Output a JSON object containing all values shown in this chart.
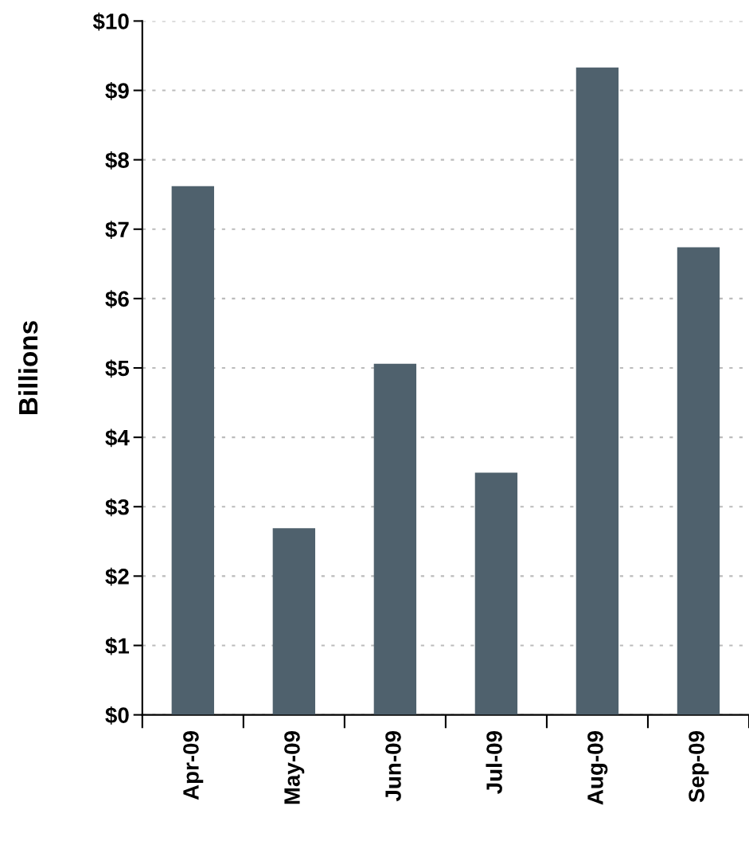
{
  "chart_data": {
    "type": "bar",
    "ylabel": "Billions",
    "categories": [
      "Apr-09",
      "May-09",
      "Jun-09",
      "Jul-09",
      "Aug-09",
      "Sep-09"
    ],
    "values": [
      7.62,
      2.69,
      5.06,
      3.49,
      9.33,
      6.74
    ],
    "color": "#4f616d",
    "ylim": [
      0,
      10
    ],
    "yticks": [
      {
        "value": 0,
        "label": "$0"
      },
      {
        "value": 1,
        "label": "$1"
      },
      {
        "value": 2,
        "label": "$2"
      },
      {
        "value": 3,
        "label": "$3"
      },
      {
        "value": 4,
        "label": "$4"
      },
      {
        "value": 5,
        "label": "$5"
      },
      {
        "value": 6,
        "label": "$6"
      },
      {
        "value": 7,
        "label": "$7"
      },
      {
        "value": 8,
        "label": "$8"
      },
      {
        "value": 9,
        "label": "$9"
      },
      {
        "value": 10,
        "label": "$10"
      }
    ],
    "grid": "y"
  }
}
